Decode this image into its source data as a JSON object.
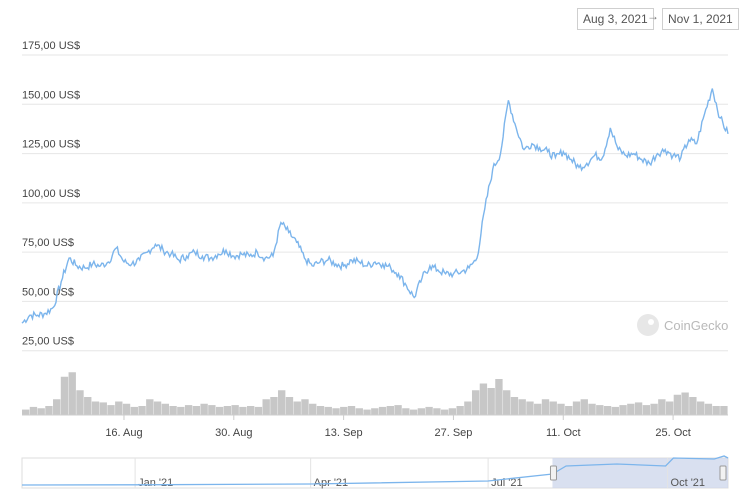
{
  "range_selector": {
    "from": "Aug 3, 2021",
    "to": "Nov 1, 2021",
    "arrow": "→"
  },
  "watermark": "CoinGecko",
  "colors": {
    "line": "#7cb5ec",
    "volume": "#c7c7c7",
    "navigator_fill": "#cfd8ec",
    "grid": "#e6e6e6"
  },
  "chart_data": {
    "type": "line",
    "x_start": "2021-08-03",
    "x_end": "2021-11-01",
    "ylim": [
      0,
      175
    ],
    "y_ticks": [
      25,
      50,
      75,
      100,
      125,
      150,
      175
    ],
    "y_tick_labels": [
      "25,00 US$",
      "50,00 US$",
      "75,00 US$",
      "100,00 US$",
      "125,00 US$",
      "150,00 US$",
      "175,00 US$"
    ],
    "x_ticks": [
      {
        "date": "2021-08-16",
        "label": "16. Aug"
      },
      {
        "date": "2021-08-30",
        "label": "30. Aug"
      },
      {
        "date": "2021-09-13",
        "label": "13. Sep"
      },
      {
        "date": "2021-09-27",
        "label": "27. Sep"
      },
      {
        "date": "2021-10-11",
        "label": "11. Oct"
      },
      {
        "date": "2021-10-25",
        "label": "25. Oct"
      }
    ],
    "price_series": [
      [
        "2021-08-03",
        39
      ],
      [
        "2021-08-04",
        43
      ],
      [
        "2021-08-05",
        43
      ],
      [
        "2021-08-06",
        44
      ],
      [
        "2021-08-07",
        47
      ],
      [
        "2021-08-08",
        60
      ],
      [
        "2021-08-09",
        72
      ],
      [
        "2021-08-10",
        68
      ],
      [
        "2021-08-11",
        67
      ],
      [
        "2021-08-12",
        69
      ],
      [
        "2021-08-13",
        68
      ],
      [
        "2021-08-14",
        70
      ],
      [
        "2021-08-15",
        77
      ],
      [
        "2021-08-16",
        70
      ],
      [
        "2021-08-17",
        69
      ],
      [
        "2021-08-18",
        71
      ],
      [
        "2021-08-19",
        75
      ],
      [
        "2021-08-20",
        79
      ],
      [
        "2021-08-21",
        76
      ],
      [
        "2021-08-22",
        74
      ],
      [
        "2021-08-23",
        71
      ],
      [
        "2021-08-24",
        73
      ],
      [
        "2021-08-25",
        75
      ],
      [
        "2021-08-26",
        73
      ],
      [
        "2021-08-27",
        72
      ],
      [
        "2021-08-28",
        74
      ],
      [
        "2021-08-29",
        76
      ],
      [
        "2021-08-30",
        73
      ],
      [
        "2021-08-31",
        74
      ],
      [
        "2021-09-01",
        73
      ],
      [
        "2021-09-02",
        75
      ],
      [
        "2021-09-03",
        72
      ],
      [
        "2021-09-04",
        73
      ],
      [
        "2021-09-05",
        90
      ],
      [
        "2021-09-06",
        85
      ],
      [
        "2021-09-07",
        80
      ],
      [
        "2021-09-08",
        72
      ],
      [
        "2021-09-09",
        68
      ],
      [
        "2021-09-10",
        70
      ],
      [
        "2021-09-11",
        71
      ],
      [
        "2021-09-12",
        69
      ],
      [
        "2021-09-13",
        68
      ],
      [
        "2021-09-14",
        71
      ],
      [
        "2021-09-15",
        70
      ],
      [
        "2021-09-16",
        68
      ],
      [
        "2021-09-17",
        70
      ],
      [
        "2021-09-18",
        69
      ],
      [
        "2021-09-19",
        67
      ],
      [
        "2021-09-20",
        64
      ],
      [
        "2021-09-21",
        58
      ],
      [
        "2021-09-22",
        52
      ],
      [
        "2021-09-23",
        62
      ],
      [
        "2021-09-24",
        68
      ],
      [
        "2021-09-25",
        66
      ],
      [
        "2021-09-26",
        64
      ],
      [
        "2021-09-27",
        64
      ],
      [
        "2021-09-28",
        65
      ],
      [
        "2021-09-29",
        67
      ],
      [
        "2021-09-30",
        72
      ],
      [
        "2021-10-01",
        97
      ],
      [
        "2021-10-02",
        117
      ],
      [
        "2021-10-03",
        125
      ],
      [
        "2021-10-04",
        152
      ],
      [
        "2021-10-05",
        138
      ],
      [
        "2021-10-06",
        127
      ],
      [
        "2021-10-07",
        130
      ],
      [
        "2021-10-08",
        128
      ],
      [
        "2021-10-09",
        126
      ],
      [
        "2021-10-10",
        123
      ],
      [
        "2021-10-11",
        126
      ],
      [
        "2021-10-12",
        122
      ],
      [
        "2021-10-13",
        118
      ],
      [
        "2021-10-14",
        120
      ],
      [
        "2021-10-15",
        124
      ],
      [
        "2021-10-16",
        123
      ],
      [
        "2021-10-17",
        138
      ],
      [
        "2021-10-18",
        127
      ],
      [
        "2021-10-19",
        124
      ],
      [
        "2021-10-20",
        125
      ],
      [
        "2021-10-21",
        122
      ],
      [
        "2021-10-22",
        120
      ],
      [
        "2021-10-23",
        125
      ],
      [
        "2021-10-24",
        127
      ],
      [
        "2021-10-25",
        124
      ],
      [
        "2021-10-26",
        123
      ],
      [
        "2021-10-27",
        132
      ],
      [
        "2021-10-28",
        130
      ],
      [
        "2021-10-29",
        145
      ],
      [
        "2021-10-30",
        158
      ],
      [
        "2021-10-31",
        143
      ],
      [
        "2021-11-01",
        135
      ]
    ],
    "volume_series_relative": [
      0.12,
      0.18,
      0.15,
      0.2,
      0.35,
      0.85,
      0.95,
      0.55,
      0.4,
      0.3,
      0.28,
      0.22,
      0.3,
      0.25,
      0.18,
      0.2,
      0.35,
      0.3,
      0.25,
      0.2,
      0.18,
      0.22,
      0.2,
      0.25,
      0.22,
      0.18,
      0.2,
      0.22,
      0.18,
      0.2,
      0.18,
      0.35,
      0.4,
      0.55,
      0.4,
      0.3,
      0.35,
      0.25,
      0.2,
      0.18,
      0.15,
      0.18,
      0.2,
      0.15,
      0.12,
      0.15,
      0.18,
      0.2,
      0.22,
      0.15,
      0.12,
      0.15,
      0.18,
      0.15,
      0.12,
      0.15,
      0.2,
      0.3,
      0.55,
      0.7,
      0.6,
      0.8,
      0.55,
      0.4,
      0.35,
      0.3,
      0.25,
      0.35,
      0.3,
      0.25,
      0.2,
      0.3,
      0.35,
      0.25,
      0.22,
      0.2,
      0.18,
      0.22,
      0.25,
      0.28,
      0.22,
      0.25,
      0.35,
      0.3,
      0.45,
      0.5,
      0.4,
      0.3,
      0.25,
      0.2,
      0.2
    ],
    "navigator": {
      "labels": [
        {
          "date": "2021-01-01",
          "label": "Jan '21"
        },
        {
          "date": "2021-04-01",
          "label": "Apr '21"
        },
        {
          "date": "2021-07-01",
          "label": "Jul '21"
        },
        {
          "date": "2021-10-01",
          "label": "Oct '21"
        }
      ],
      "x_start": "2020-11-04",
      "x_end": "2021-11-01",
      "selected_from": "2021-08-03",
      "selected_to": "2021-11-01"
    }
  }
}
